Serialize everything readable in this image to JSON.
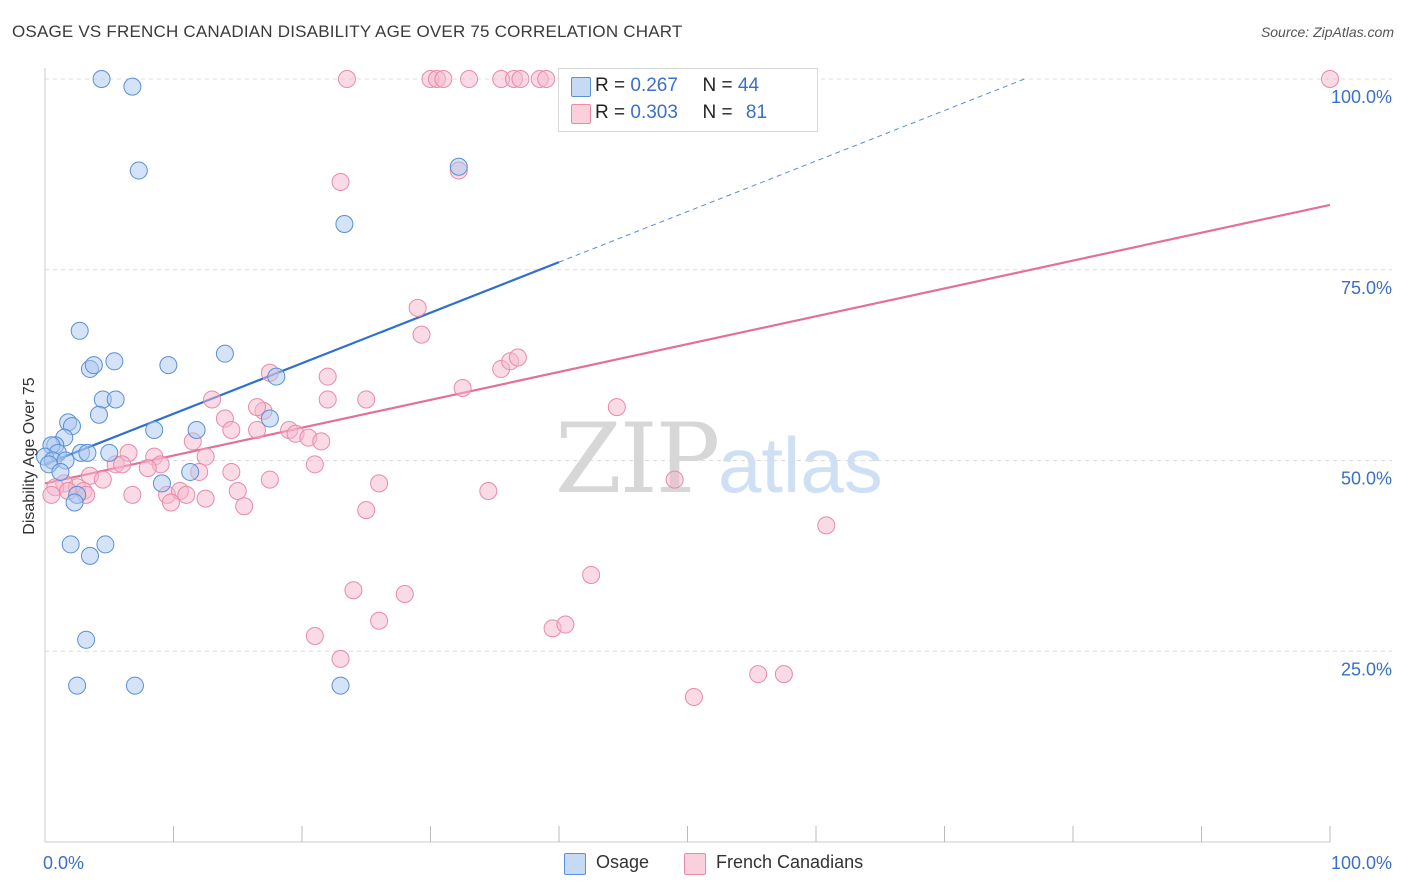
{
  "title": "OSAGE VS FRENCH CANADIAN DISABILITY AGE OVER 75 CORRELATION CHART",
  "source": "Source: ZipAtlas.com",
  "watermark": {
    "zip": "ZIP",
    "atlas": "atlas"
  },
  "legend": {
    "osage": {
      "r_label": "R =",
      "r_value": "0.267",
      "n_label": "N =",
      "n_value": "44"
    },
    "french": {
      "r_label": "R =",
      "r_value": "0.303",
      "n_label": "N =",
      "n_value": "81"
    }
  },
  "colors": {
    "osage_fill": "#a9c8ef",
    "osage_stroke": "#5b8fd6",
    "osage_line": "#2f6fd0",
    "french_fill": "#f6b8cb",
    "french_stroke": "#e98aa8",
    "french_line": "#e4709a",
    "grid": "#dcdcdc",
    "axis_label": "#3a6fc9"
  },
  "chart_data": {
    "type": "scatter",
    "title": "OSAGE VS FRENCH CANADIAN DISABILITY AGE OVER 75 CORRELATION CHART",
    "xlabel": "",
    "ylabel": "Disability Age Over 75",
    "xlim": [
      0,
      100
    ],
    "ylim": [
      0,
      100
    ],
    "x_tick_labels": [
      "0.0%",
      "100.0%"
    ],
    "y_tick_labels": [
      "25.0%",
      "50.0%",
      "75.0%",
      "100.0%"
    ],
    "y_ticks": [
      25,
      50,
      75,
      100
    ],
    "grid": true,
    "legend_position": "top-center",
    "series": [
      {
        "name": "Osage",
        "trend": {
          "x0": 0,
          "y0": 49.5,
          "x1": 40,
          "y1": 76,
          "dashed_to": 76.5
        },
        "points": [
          [
            4.4,
            100
          ],
          [
            6.8,
            99
          ],
          [
            7.3,
            88
          ],
          [
            23.3,
            81
          ],
          [
            32.2,
            88.5
          ],
          [
            2.7,
            67
          ],
          [
            5.4,
            63
          ],
          [
            3.5,
            62
          ],
          [
            3.8,
            62.5
          ],
          [
            9.6,
            62.5
          ],
          [
            14,
            64
          ],
          [
            18,
            61
          ],
          [
            4.5,
            58
          ],
          [
            5.5,
            58
          ],
          [
            4.2,
            56
          ],
          [
            17.5,
            55.5
          ],
          [
            1.8,
            55
          ],
          [
            2.1,
            54.5
          ],
          [
            8.5,
            54
          ],
          [
            11.8,
            54
          ],
          [
            1.5,
            53
          ],
          [
            0.8,
            52
          ],
          [
            0.5,
            52
          ],
          [
            1,
            51
          ],
          [
            0,
            50.5
          ],
          [
            2.8,
            51
          ],
          [
            3.3,
            51
          ],
          [
            5,
            51
          ],
          [
            0.6,
            50
          ],
          [
            1.6,
            50
          ],
          [
            0.3,
            49.5
          ],
          [
            1.2,
            48.5
          ],
          [
            11.3,
            48.5
          ],
          [
            9.1,
            47
          ],
          [
            2.5,
            45.5
          ],
          [
            2.3,
            44.5
          ],
          [
            2,
            39
          ],
          [
            4.7,
            39
          ],
          [
            3.5,
            37.5
          ],
          [
            3.2,
            26.5
          ],
          [
            2.5,
            20.5
          ],
          [
            7,
            20.5
          ],
          [
            23,
            20.5
          ]
        ]
      },
      {
        "name": "French Canadians",
        "trend": {
          "x0": 0,
          "y0": 47,
          "x1": 100,
          "y1": 83.5
        },
        "points": [
          [
            23.5,
            100
          ],
          [
            30,
            100
          ],
          [
            30.5,
            100
          ],
          [
            31,
            100
          ],
          [
            33,
            100
          ],
          [
            35.5,
            100
          ],
          [
            36.5,
            100
          ],
          [
            37,
            100
          ],
          [
            38.5,
            100
          ],
          [
            39,
            100
          ],
          [
            100,
            100
          ],
          [
            23,
            86.5
          ],
          [
            32.2,
            88
          ],
          [
            29,
            70
          ],
          [
            29.3,
            66.5
          ],
          [
            35.5,
            62
          ],
          [
            36.2,
            63
          ],
          [
            36.8,
            63.5
          ],
          [
            22,
            61
          ],
          [
            17.5,
            61.5
          ],
          [
            32.5,
            59.5
          ],
          [
            22,
            58
          ],
          [
            17,
            56.5
          ],
          [
            25,
            58
          ],
          [
            13,
            58
          ],
          [
            16.5,
            57
          ],
          [
            14,
            55.5
          ],
          [
            44.5,
            57
          ],
          [
            19,
            54
          ],
          [
            19.5,
            53.5
          ],
          [
            20.5,
            53
          ],
          [
            14.5,
            54
          ],
          [
            16.5,
            54
          ],
          [
            11.5,
            52.5
          ],
          [
            21.5,
            52.5
          ],
          [
            12.5,
            50.5
          ],
          [
            6.5,
            51
          ],
          [
            8.5,
            50.5
          ],
          [
            9,
            49.5
          ],
          [
            21,
            49.5
          ],
          [
            5.5,
            49.5
          ],
          [
            6,
            49.5
          ],
          [
            14.5,
            48.5
          ],
          [
            8,
            49
          ],
          [
            12,
            48.5
          ],
          [
            3.5,
            48
          ],
          [
            4.5,
            47.5
          ],
          [
            17.5,
            47.5
          ],
          [
            26,
            47
          ],
          [
            49,
            47.5
          ],
          [
            1.5,
            47
          ],
          [
            2.5,
            46.5
          ],
          [
            0.8,
            46.5
          ],
          [
            3,
            46
          ],
          [
            1.8,
            46
          ],
          [
            0.5,
            45.5
          ],
          [
            3.2,
            45.5
          ],
          [
            6.8,
            45.5
          ],
          [
            9.5,
            45.5
          ],
          [
            10.5,
            46
          ],
          [
            11,
            45.5
          ],
          [
            15,
            46
          ],
          [
            12.5,
            45
          ],
          [
            9.8,
            44.5
          ],
          [
            15.5,
            44
          ],
          [
            25,
            43.5
          ],
          [
            34.5,
            46
          ],
          [
            60.8,
            41.5
          ],
          [
            42.5,
            35
          ],
          [
            24,
            33
          ],
          [
            28,
            32.5
          ],
          [
            26,
            29
          ],
          [
            39.5,
            28
          ],
          [
            40.5,
            28.5
          ],
          [
            21,
            27
          ],
          [
            23,
            24
          ],
          [
            55.5,
            22
          ],
          [
            57.5,
            22
          ],
          [
            50.5,
            19
          ]
        ]
      }
    ]
  }
}
